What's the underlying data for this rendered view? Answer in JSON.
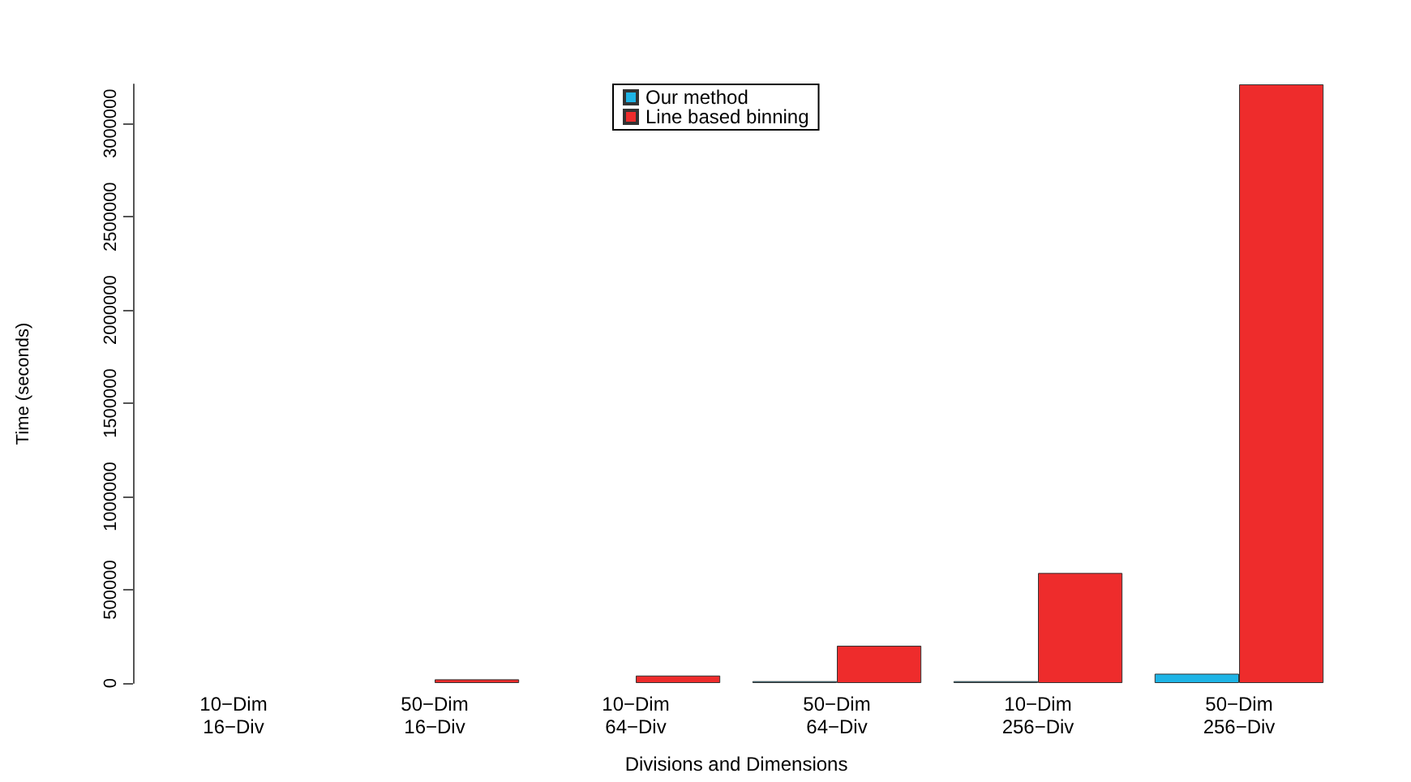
{
  "chart_data": {
    "type": "bar",
    "xlabel": "Divisions and Dimensions",
    "ylabel": "Time (seconds)",
    "categories": [
      "10−Dim\n16−Div",
      "50−Dim\n16−Div",
      "10−Dim\n64−Div",
      "50−Dim\n64−Div",
      "10−Dim\n256−Div",
      "50−Dim\n256−Div"
    ],
    "series": [
      {
        "name": "Our method",
        "color": "#1eb4e6",
        "values": [
          0,
          0,
          0,
          10000,
          10000,
          50000
        ]
      },
      {
        "name": "Line based binning",
        "color": "#ee2c2c",
        "values": [
          0,
          20000,
          40000,
          200000,
          590000,
          3210000
        ]
      }
    ],
    "ylim": [
      0,
      3210000
    ],
    "yticks": [
      0,
      500000,
      1000000,
      1500000,
      2000000,
      2500000,
      3000000
    ],
    "legend": "top",
    "grid": false
  }
}
